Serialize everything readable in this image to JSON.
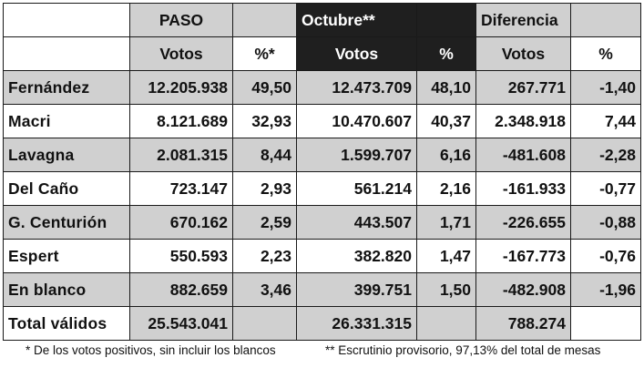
{
  "headers": {
    "paso": "PASO",
    "octubre": "Octubre**",
    "diferencia": "Diferencia",
    "votos_paso": "Votos",
    "pct_paso": "%*",
    "votos_oct": "Votos",
    "pct_oct": "%",
    "votos_dif": "Votos",
    "pct_dif": "%"
  },
  "rows": [
    {
      "name": "Fernández",
      "paso_votos": "12.205.938",
      "paso_pct": "49,50",
      "oct_votos": "12.473.709",
      "oct_pct": "48,10",
      "dif_votos": "267.771",
      "dif_pct": "-1,40"
    },
    {
      "name": "Macri",
      "paso_votos": "8.121.689",
      "paso_pct": "32,93",
      "oct_votos": "10.470.607",
      "oct_pct": "40,37",
      "dif_votos": "2.348.918",
      "dif_pct": "7,44"
    },
    {
      "name": "Lavagna",
      "paso_votos": "2.081.315",
      "paso_pct": "8,44",
      "oct_votos": "1.599.707",
      "oct_pct": "6,16",
      "dif_votos": "-481.608",
      "dif_pct": "-2,28"
    },
    {
      "name": "Del Caño",
      "paso_votos": "723.147",
      "paso_pct": "2,93",
      "oct_votos": "561.214",
      "oct_pct": "2,16",
      "dif_votos": "-161.933",
      "dif_pct": "-0,77"
    },
    {
      "name": "G. Centurión",
      "paso_votos": "670.162",
      "paso_pct": "2,59",
      "oct_votos": "443.507",
      "oct_pct": "1,71",
      "dif_votos": "-226.655",
      "dif_pct": "-0,88"
    },
    {
      "name": "Espert",
      "paso_votos": "550.593",
      "paso_pct": "2,23",
      "oct_votos": "382.820",
      "oct_pct": "1,47",
      "dif_votos": "-167.773",
      "dif_pct": "-0,76"
    },
    {
      "name": "En blanco",
      "paso_votos": "882.659",
      "paso_pct": "3,46",
      "oct_votos": "399.751",
      "oct_pct": "1,50",
      "dif_votos": "-482.908",
      "dif_pct": "-1,96"
    }
  ],
  "total": {
    "name": "Total válidos",
    "paso_votos": "25.543.041",
    "oct_votos": "26.331.315",
    "dif_votos": "788.274"
  },
  "footnotes": {
    "note1": "* De los votos positivos, sin incluir los blancos",
    "note2": "** Escrutinio provisorio, 97,13% del total de mesas"
  },
  "colors": {
    "row_shade": "#d0d0d0",
    "header_dark": "#1f1f1f",
    "header_text_on_dark": "#ffffff"
  }
}
